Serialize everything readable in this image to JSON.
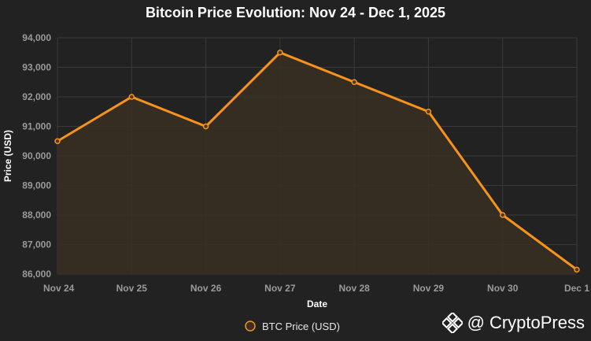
{
  "chart_data": {
    "type": "line",
    "title": "Bitcoin Price Evolution: Nov 24 - Dec 1, 2025",
    "xlabel": "Date",
    "ylabel": "Price (USD)",
    "categories": [
      "Nov 24",
      "Nov 25",
      "Nov 26",
      "Nov 27",
      "Nov 28",
      "Nov 29",
      "Nov 30",
      "Dec 1"
    ],
    "series": [
      {
        "name": "BTC Price (USD)",
        "values": [
          90500,
          92000,
          91000,
          93500,
          92500,
          91500,
          88000,
          86150
        ]
      }
    ],
    "ylim": [
      86000,
      94000
    ],
    "yticks": [
      86000,
      87000,
      88000,
      89000,
      90000,
      91000,
      92000,
      93000,
      94000
    ],
    "yticks_labels": [
      "86,000",
      "87,000",
      "88,000",
      "89,000",
      "90,000",
      "91,000",
      "92,000",
      "93,000",
      "94,000"
    ],
    "grid": true,
    "legend": "bottom-center",
    "colors": {
      "line": "#f7931a",
      "fill": "#3a2f22",
      "background": "#222222"
    }
  },
  "watermark": {
    "at_symbol": "@",
    "text": "CryptoPress",
    "icon": "binance-diamond-icon"
  }
}
